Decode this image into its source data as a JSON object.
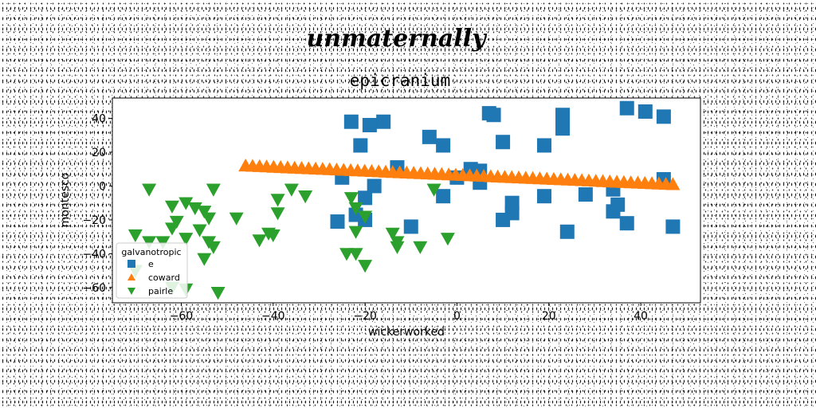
{
  "chart_data": {
    "type": "scatter",
    "suptitle": "unmaternally",
    "title": "epicranium",
    "xlabel": "wickerworked",
    "ylabel": "montesco",
    "xlim": [
      -75,
      53
    ],
    "ylim": [
      -69,
      52
    ],
    "xticks": [
      -60,
      -40,
      -20,
      0,
      20,
      40
    ],
    "yticks": [
      -60,
      -40,
      -20,
      0,
      20,
      40
    ],
    "grid": false,
    "legend": {
      "title": "galvanotropic",
      "position": "lower-left"
    },
    "series": [
      {
        "name": "e",
        "marker": "square",
        "color": "#1f77b4",
        "points": [
          [
            -23,
            38
          ],
          [
            -19,
            36
          ],
          [
            -16,
            38
          ],
          [
            -21,
            24
          ],
          [
            -6,
            29
          ],
          [
            -3,
            24
          ],
          [
            7,
            43
          ],
          [
            8,
            42
          ],
          [
            10,
            26
          ],
          [
            19,
            24
          ],
          [
            23,
            42
          ],
          [
            23,
            34
          ],
          [
            37,
            46
          ],
          [
            41,
            44
          ],
          [
            45,
            41
          ],
          [
            -25,
            5
          ],
          [
            -13,
            11
          ],
          [
            0,
            5
          ],
          [
            3,
            10
          ],
          [
            5,
            9
          ],
          [
            5,
            2
          ],
          [
            45,
            4
          ],
          [
            -18,
            0
          ],
          [
            -20,
            -7
          ],
          [
            -3,
            -6
          ],
          [
            12,
            -10
          ],
          [
            12,
            -16
          ],
          [
            19,
            -6
          ],
          [
            28,
            -5
          ],
          [
            34,
            -2
          ],
          [
            35,
            -11
          ],
          [
            34,
            -15
          ],
          [
            -26,
            -21
          ],
          [
            -20,
            -20
          ],
          [
            -22,
            -17
          ],
          [
            -10,
            -24
          ],
          [
            10,
            -20
          ],
          [
            24,
            -27
          ],
          [
            37,
            -22
          ],
          [
            47,
            -24
          ]
        ]
      },
      {
        "name": "coward",
        "marker": "triangle-up",
        "color": "#ff7f0e",
        "x_range": [
          -46,
          47
        ],
        "y_at_start": 12,
        "y_at_end": 1,
        "count": 62
      },
      {
        "name": "pairle",
        "marker": "triangle-down",
        "color": "#2ca02c",
        "points": [
          [
            -67,
            -2
          ],
          [
            -62,
            -12
          ],
          [
            -59,
            -10
          ],
          [
            -61,
            -21
          ],
          [
            -57,
            -13
          ],
          [
            -55,
            -15
          ],
          [
            -54,
            -19
          ],
          [
            -53,
            -2
          ],
          [
            -48,
            -19
          ],
          [
            -56,
            -26
          ],
          [
            -62,
            -25
          ],
          [
            -59,
            -31
          ],
          [
            -64,
            -33
          ],
          [
            -67,
            -33
          ],
          [
            -70,
            -29
          ],
          [
            -54,
            -33
          ],
          [
            -55,
            -43
          ],
          [
            -53,
            -36
          ],
          [
            -52,
            -63
          ],
          [
            -62,
            -60
          ],
          [
            -59,
            -61
          ],
          [
            -70,
            -50
          ],
          [
            -43,
            -32
          ],
          [
            -40,
            -29
          ],
          [
            -41,
            -28
          ],
          [
            -39,
            -8
          ],
          [
            -39,
            -16
          ],
          [
            -36,
            -2
          ],
          [
            -33,
            -6
          ],
          [
            -23,
            -7
          ],
          [
            -22,
            -13
          ],
          [
            -22,
            -27
          ],
          [
            -20,
            -18
          ],
          [
            -24,
            -40
          ],
          [
            -22,
            -40
          ],
          [
            -20,
            -47
          ],
          [
            -14,
            -28
          ],
          [
            -13,
            -33
          ],
          [
            -13,
            -36
          ],
          [
            -8,
            -36
          ],
          [
            -5,
            -2
          ],
          [
            -2,
            -31
          ]
        ]
      }
    ]
  }
}
